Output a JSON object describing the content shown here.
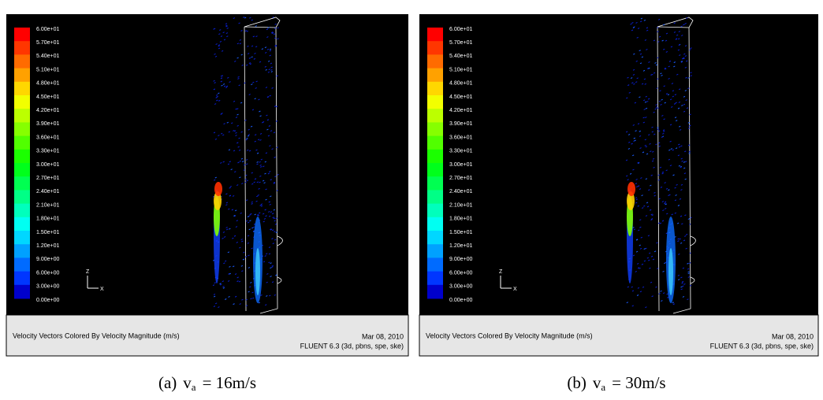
{
  "panels": [
    {
      "colorbar_labels": [
        "6.00e+01",
        "5.70e+01",
        "5.40e+01",
        "5.10e+01",
        "4.80e+01",
        "4.50e+01",
        "4.20e+01",
        "3.90e+01",
        "3.60e+01",
        "3.30e+01",
        "3.00e+01",
        "2.70e+01",
        "2.40e+01",
        "2.10e+01",
        "1.80e+01",
        "1.50e+01",
        "1.20e+01",
        "9.00e+00",
        "6.00e+00",
        "3.00e+00",
        "0.00e+00"
      ],
      "axis_z": "Z",
      "axis_x": "X",
      "footer_title": "Velocity Vectors Colored By Velocity Magnitude (m/s)",
      "footer_date": "Mar 08, 2010",
      "footer_solver": "FLUENT 6.3 (3d, pbns, spe, ske)",
      "caption": {
        "label": "(a)",
        "symbol": "v",
        "subscript": "a",
        "equation": "= 16m/s"
      }
    },
    {
      "colorbar_labels": [
        "6.00e+01",
        "5.70e+01",
        "5.40e+01",
        "5.10e+01",
        "4.80e+01",
        "4.50e+01",
        "4.20e+01",
        "3.90e+01",
        "3.60e+01",
        "3.30e+01",
        "3.00e+01",
        "2.70e+01",
        "2.40e+01",
        "2.10e+01",
        "1.80e+01",
        "1.50e+01",
        "1.20e+01",
        "9.00e+00",
        "6.00e+00",
        "3.00e+00",
        "0.00e+00"
      ],
      "axis_z": "Z",
      "axis_x": "X",
      "footer_title": "Velocity Vectors Colored By Velocity Magnitude (m/s)",
      "footer_date": "Mar 08, 2010",
      "footer_solver": "FLUENT 6.3 (3d, pbns, spe, ske)",
      "caption": {
        "label": "(b)",
        "symbol": "v",
        "subscript": "a",
        "equation": "= 30m/s"
      }
    }
  ]
}
